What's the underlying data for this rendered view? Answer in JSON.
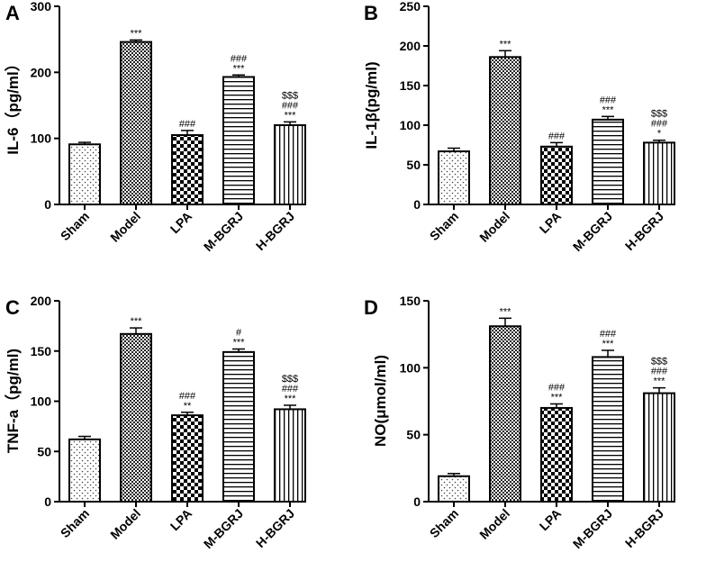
{
  "figure": {
    "panels": [
      "A",
      "B",
      "C",
      "D"
    ]
  },
  "chart_data": [
    {
      "panel": "A",
      "type": "bar",
      "title": "",
      "xlabel": "",
      "ylabel": "IL-6（pg/ml）",
      "categories": [
        "Sham",
        "Model",
        "LPA",
        "M-BGRJ",
        "H-BGRJ"
      ],
      "values": [
        91,
        246,
        105,
        193,
        120
      ],
      "errors": [
        3,
        3,
        7,
        3,
        5
      ],
      "ylim": [
        0,
        300
      ],
      "yticks": [
        0,
        100,
        200,
        300
      ],
      "significance": [
        [],
        [
          "***"
        ],
        [
          "###"
        ],
        [
          "###",
          "***"
        ],
        [
          "$$$",
          "###",
          "***"
        ]
      ],
      "patterns": [
        "dots",
        "checker-fine",
        "checker",
        "hlines",
        "vlines"
      ],
      "grid": false,
      "legend": "none"
    },
    {
      "panel": "B",
      "type": "bar",
      "title": "",
      "xlabel": "",
      "ylabel": "IL-1β(pg/ml)",
      "categories": [
        "Sham",
        "Model",
        "LPA",
        "M-BGRJ",
        "H-BGRJ"
      ],
      "values": [
        67,
        186,
        73,
        107,
        78
      ],
      "errors": [
        4,
        8,
        5,
        4,
        3
      ],
      "ylim": [
        0,
        250
      ],
      "yticks": [
        0,
        50,
        100,
        150,
        200,
        250
      ],
      "significance": [
        [],
        [
          "***"
        ],
        [
          "###"
        ],
        [
          "###",
          "***"
        ],
        [
          "$$$",
          "###",
          "*"
        ]
      ],
      "patterns": [
        "dots",
        "checker-fine",
        "checker",
        "hlines",
        "vlines"
      ],
      "grid": false,
      "legend": "none"
    },
    {
      "panel": "C",
      "type": "bar",
      "title": "",
      "xlabel": "",
      "ylabel": "TNF-a（pg/ml)",
      "categories": [
        "Sham",
        "Model",
        "LPA",
        "M-BGRJ",
        "H-BGRJ"
      ],
      "values": [
        62,
        167,
        86,
        149,
        92
      ],
      "errors": [
        3,
        6,
        3,
        3,
        4
      ],
      "ylim": [
        0,
        200
      ],
      "yticks": [
        0,
        50,
        100,
        150,
        200
      ],
      "significance": [
        [],
        [
          "***"
        ],
        [
          "###",
          "**"
        ],
        [
          "#",
          "***"
        ],
        [
          "$$$",
          "###",
          "***"
        ]
      ],
      "patterns": [
        "dots",
        "checker-fine",
        "checker",
        "hlines",
        "vlines"
      ],
      "grid": false,
      "legend": "none"
    },
    {
      "panel": "D",
      "type": "bar",
      "title": "",
      "xlabel": "",
      "ylabel": "NO(μmol/ml)",
      "categories": [
        "Sham",
        "Model",
        "LPA",
        "M-BGRJ",
        "H-BGRJ"
      ],
      "values": [
        19,
        131,
        70,
        108,
        81
      ],
      "errors": [
        2,
        6,
        3,
        5,
        4
      ],
      "ylim": [
        0,
        150
      ],
      "yticks": [
        0,
        50,
        100,
        150
      ],
      "significance": [
        [],
        [
          "***"
        ],
        [
          "###",
          "***"
        ],
        [
          "###",
          "***"
        ],
        [
          "$$$",
          "###",
          "***"
        ]
      ],
      "patterns": [
        "dots",
        "checker-fine",
        "checker",
        "hlines",
        "vlines"
      ],
      "grid": false,
      "legend": "none"
    }
  ]
}
